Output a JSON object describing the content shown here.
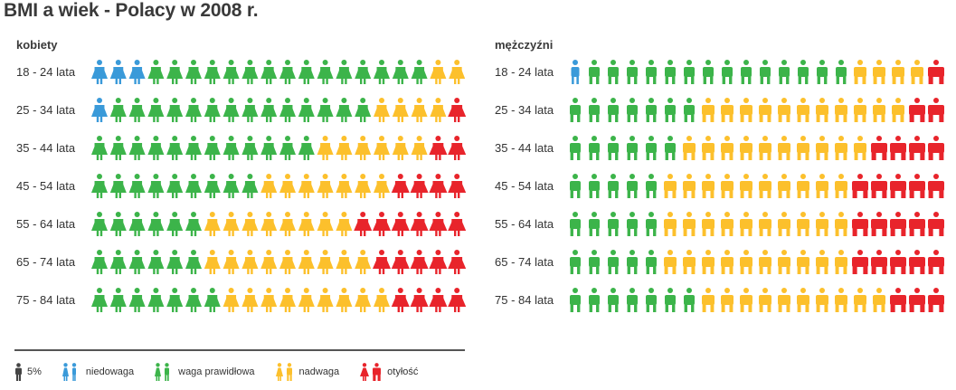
{
  "title": "BMI a wiek - Polacy w 2008 r.",
  "legend": {
    "unit_label": "5%",
    "items": [
      {
        "key": "underweight",
        "label": "niedowaga",
        "color": "#3a9ad9"
      },
      {
        "key": "normal",
        "label": "waga prawidłowa",
        "color": "#3cb44a"
      },
      {
        "key": "overweight",
        "label": "nadwaga",
        "color": "#fcc02c"
      },
      {
        "key": "obese",
        "label": "otyłość",
        "color": "#e8242b"
      }
    ]
  },
  "chart_data": {
    "type": "pictogram",
    "unit_percent": 5,
    "categories": [
      "18 - 24 lata",
      "25 - 34 lata",
      "35 - 44 lata",
      "45 - 54 lata",
      "55 - 64 lata",
      "65 - 74 lata",
      "75 - 84 lata"
    ],
    "panels": [
      {
        "key": "women",
        "title": "kobiety",
        "icon": "woman-icon",
        "series": [
          {
            "name": "niedowaga",
            "values": [
              3,
              1,
              0,
              0,
              0,
              0,
              0
            ]
          },
          {
            "name": "waga prawidłowa",
            "values": [
              15,
              14,
              12,
              9,
              6,
              6,
              7
            ]
          },
          {
            "name": "nadwaga",
            "values": [
              2,
              4,
              6,
              7,
              8,
              9,
              9
            ]
          },
          {
            "name": "otyłość",
            "values": [
              0,
              1,
              2,
              4,
              6,
              5,
              4
            ]
          }
        ]
      },
      {
        "key": "men",
        "title": "mężczyźni",
        "icon": "man-icon",
        "series": [
          {
            "name": "niedowaga",
            "values": [
              1,
              0,
              0,
              0,
              0,
              0,
              0
            ]
          },
          {
            "name": "waga prawidłowa",
            "values": [
              14,
              7,
              6,
              5,
              5,
              5,
              7
            ]
          },
          {
            "name": "nadwaga",
            "values": [
              4,
              11,
              10,
              10,
              10,
              10,
              10
            ]
          },
          {
            "name": "otyłość",
            "values": [
              1,
              2,
              4,
              5,
              5,
              5,
              3
            ]
          }
        ]
      }
    ]
  }
}
